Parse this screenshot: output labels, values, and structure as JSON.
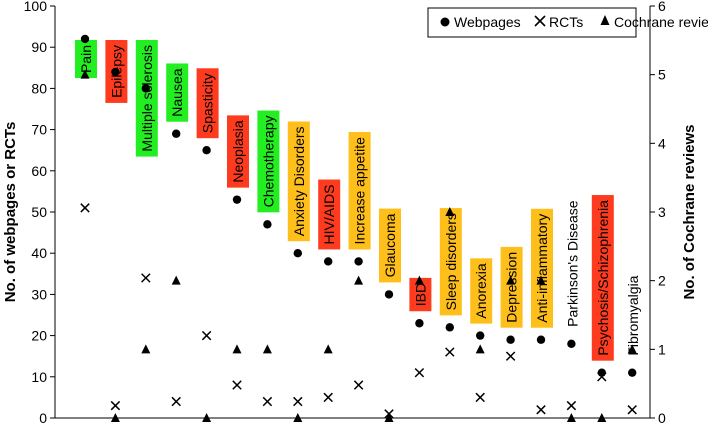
{
  "chart_data": {
    "type": "scatter",
    "ylabel": "No. of webpages or RCTs",
    "y2label": "No. of Cochrane reviews",
    "ylim": [
      0,
      100
    ],
    "y2lim": [
      0,
      6
    ],
    "yticks": [
      "0",
      "10",
      "20",
      "30",
      "40",
      "50",
      "60",
      "70",
      "80",
      "90",
      "100"
    ],
    "y2ticks": [
      "0",
      "1",
      "2",
      "3",
      "4",
      "5",
      "6"
    ],
    "grid": false,
    "legend_position": "top-right",
    "legend": [
      {
        "name": "Webpages",
        "marker": "circle"
      },
      {
        "name": "RCTs",
        "marker": "x"
      },
      {
        "name": "Cochrane reviews",
        "marker": "triangle"
      }
    ],
    "colors": {
      "green": "#22ee22",
      "red": "#ff3b1f",
      "orange": "#ffbf1a"
    },
    "categories": [
      {
        "label": "Pain",
        "color": "green",
        "webpages": 92,
        "rcts": 51,
        "cochrane": 5
      },
      {
        "label": "Epilepsy",
        "color": "red",
        "webpages": 84,
        "rcts": 3,
        "cochrane": 0
      },
      {
        "label": "Multiple sclerosis",
        "color": "green",
        "webpages": 80,
        "rcts": 34,
        "cochrane": 1
      },
      {
        "label": "Nausea",
        "color": "green",
        "webpages": 69,
        "rcts": 4,
        "cochrane": 2
      },
      {
        "label": "Spasticity",
        "color": "red",
        "webpages": 65,
        "rcts": 20,
        "cochrane": 0
      },
      {
        "label": "Neoplasia",
        "color": "red",
        "webpages": 53,
        "rcts": 8,
        "cochrane": 1
      },
      {
        "label": "Chemotherapy",
        "color": "green",
        "webpages": 47,
        "rcts": 4,
        "cochrane": 1
      },
      {
        "label": "Anxiety Disorders",
        "color": "orange",
        "webpages": 40,
        "rcts": 4,
        "cochrane": 0
      },
      {
        "label": "HIV/AIDS",
        "color": "red",
        "webpages": 38,
        "rcts": 5,
        "cochrane": 1
      },
      {
        "label": "Increase appetite",
        "color": "orange",
        "webpages": 38,
        "rcts": 8,
        "cochrane": 2
      },
      {
        "label": "Glaucoma",
        "color": "orange",
        "webpages": 30,
        "rcts": 1,
        "cochrane": 0
      },
      {
        "label": "IBD",
        "color": "red",
        "webpages": 23,
        "rcts": 11,
        "cochrane": 2
      },
      {
        "label": "Sleep disorders",
        "color": "orange",
        "webpages": 22,
        "rcts": 16,
        "cochrane": 3
      },
      {
        "label": "Anorexia",
        "color": "orange",
        "webpages": 20,
        "rcts": 5,
        "cochrane": 1
      },
      {
        "label": "Depression",
        "color": "orange",
        "webpages": 19,
        "rcts": 15,
        "cochrane": 2
      },
      {
        "label": "Anti-inflammatory",
        "color": "orange",
        "webpages": 19,
        "rcts": 2,
        "cochrane": 2
      },
      {
        "label": "Parkinson's Disease",
        "color": "none",
        "webpages": 18,
        "rcts": 3,
        "cochrane": 0
      },
      {
        "label": "Psychosis/Schizophrenia",
        "color": "red",
        "webpages": 11,
        "rcts": 10,
        "cochrane": 0
      },
      {
        "label": "Fibromyalgia",
        "color": "none",
        "webpages": 11,
        "rcts": 2,
        "cochrane": 1
      }
    ]
  }
}
